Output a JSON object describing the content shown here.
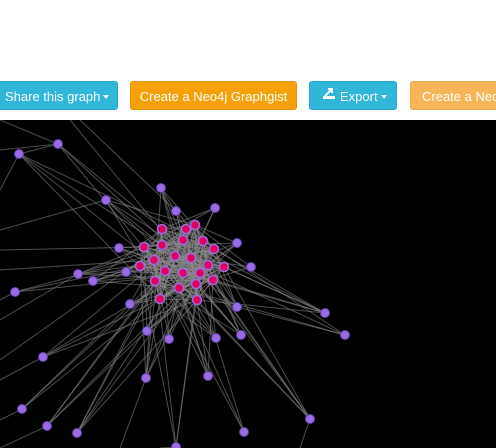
{
  "toolbar": {
    "share_label": "Share this graph",
    "neo4j_label": "Create a Neo4j Graphgist",
    "export_label": "Export",
    "neo4j2_label": "Create a Neo"
  },
  "icons": {
    "caret": "chevron-down-icon",
    "export": "export-icon"
  },
  "colors": {
    "info": "#2fb6d8",
    "warning": "#f6a10a",
    "warning_light": "#f7b55a",
    "canvas": "#000000",
    "node_outer": "#9b6be0",
    "node_inner": "#e0005a",
    "edge": "#8a8a8a"
  }
}
